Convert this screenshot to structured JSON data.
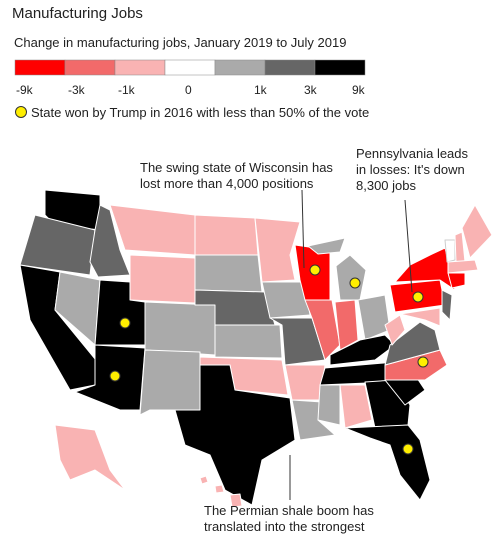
{
  "header": {
    "title": "Manufacturing Jobs",
    "subtitle": "Change in manufacturing jobs, January 2019 to July 2019"
  },
  "legend": {
    "colors": [
      "#ff0000",
      "#f26a6a",
      "#f9b3b3",
      "#ffffff",
      "#aaaaaa",
      "#666666",
      "#000000"
    ],
    "labels": [
      "-9k",
      "-3k",
      "-1k",
      "0",
      "1k",
      "3k",
      "9k"
    ],
    "note": "State won by Trump in 2016 with less than 50% of the vote"
  },
  "annotations": [
    {
      "lines": [
        "The swing state of Wisconsin has",
        "lost more than 4,000 positions"
      ]
    },
    {
      "lines": [
        "Pennsylvania leads",
        "in losses: It's down",
        "8,300 jobs"
      ]
    },
    {
      "lines": [
        "The Permian shale boom has",
        "translated into the strongest"
      ]
    }
  ]
}
